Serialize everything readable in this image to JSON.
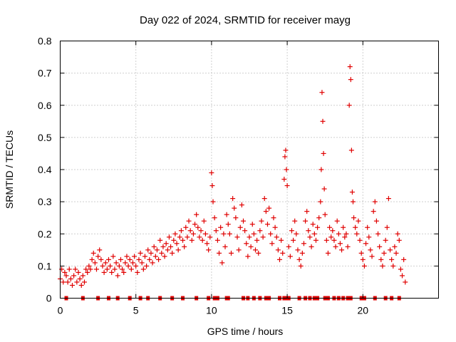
{
  "chart_data": {
    "type": "scatter",
    "title": "Day 022 of 2024, SRMTID for receiver mayg",
    "xlabel": "GPS time / hours",
    "ylabel": "SRMTID / TECUs",
    "xlim": [
      0,
      25
    ],
    "ylim": [
      0,
      0.8
    ],
    "x_ticks": [
      0,
      5,
      10,
      15,
      20
    ],
    "y_ticks": [
      0,
      0.1,
      0.2,
      0.3,
      0.4,
      0.5,
      0.6,
      0.7,
      0.8
    ],
    "x_tick_labels": [
      "0",
      "5",
      "10",
      "15",
      "20"
    ],
    "y_tick_labels": [
      "0",
      "0.1",
      "0.2",
      "0.3",
      "0.4",
      "0.5",
      "0.6",
      "0.7",
      "0.8"
    ],
    "grid": true,
    "marker": "+",
    "series_color": "#e00000",
    "series": [
      {
        "name": "SRMTID",
        "x": [
          0.0,
          0.1,
          0.2,
          0.3,
          0.4,
          0.5,
          0.6,
          0.7,
          0.8,
          0.9,
          1.0,
          1.1,
          1.2,
          1.3,
          1.4,
          1.5,
          1.6,
          1.7,
          1.8,
          1.9,
          2.0,
          2.1,
          2.2,
          2.3,
          2.4,
          2.5,
          2.6,
          2.7,
          2.8,
          2.9,
          3.0,
          3.1,
          3.2,
          3.3,
          3.4,
          3.5,
          3.6,
          3.7,
          3.8,
          3.9,
          4.0,
          4.1,
          4.2,
          4.3,
          4.4,
          4.5,
          4.6,
          4.7,
          4.8,
          4.9,
          5.0,
          5.1,
          5.2,
          5.3,
          5.4,
          5.5,
          5.6,
          5.7,
          5.8,
          5.9,
          6.0,
          6.1,
          6.2,
          6.3,
          6.4,
          6.5,
          6.6,
          6.7,
          6.8,
          6.9,
          7.0,
          7.1,
          7.2,
          7.3,
          7.4,
          7.5,
          7.6,
          7.7,
          7.8,
          7.9,
          8.0,
          8.1,
          8.2,
          8.3,
          8.4,
          8.5,
          8.6,
          8.7,
          8.8,
          8.9,
          9.0,
          9.1,
          9.2,
          9.3,
          9.4,
          9.5,
          9.6,
          9.7,
          9.8,
          9.9,
          10.0,
          10.05,
          10.1,
          10.2,
          10.3,
          10.4,
          10.5,
          10.6,
          10.7,
          10.8,
          10.9,
          11.0,
          11.1,
          11.2,
          11.3,
          11.4,
          11.5,
          11.6,
          11.7,
          11.8,
          11.9,
          12.0,
          12.1,
          12.2,
          12.3,
          12.4,
          12.5,
          12.6,
          12.7,
          12.8,
          12.9,
          13.0,
          13.1,
          13.2,
          13.3,
          13.4,
          13.5,
          13.6,
          13.7,
          13.8,
          13.9,
          14.0,
          14.1,
          14.2,
          14.3,
          14.4,
          14.5,
          14.6,
          14.7,
          14.8,
          14.85,
          14.9,
          14.95,
          15.0,
          15.1,
          15.2,
          15.3,
          15.4,
          15.5,
          15.6,
          15.7,
          15.8,
          15.9,
          16.0,
          16.1,
          16.2,
          16.3,
          16.4,
          16.5,
          16.6,
          16.7,
          16.8,
          16.9,
          17.0,
          17.1,
          17.2,
          17.25,
          17.3,
          17.35,
          17.4,
          17.45,
          17.5,
          17.6,
          17.7,
          17.8,
          17.9,
          18.0,
          18.1,
          18.2,
          18.3,
          18.4,
          18.5,
          18.6,
          18.7,
          18.8,
          18.9,
          19.0,
          19.1,
          19.15,
          19.2,
          19.25,
          19.3,
          19.35,
          19.4,
          19.5,
          19.6,
          19.7,
          19.8,
          19.9,
          20.0,
          20.1,
          20.2,
          20.3,
          20.4,
          20.5,
          20.6,
          20.7,
          20.8,
          20.9,
          21.0,
          21.1,
          21.2,
          21.3,
          21.4,
          21.5,
          21.6,
          21.7,
          21.8,
          21.9,
          22.0,
          22.1,
          22.2,
          22.3,
          22.4,
          22.5,
          22.6,
          22.7,
          22.8
        ],
        "y": [
          0.06,
          0.09,
          0.05,
          0.08,
          0.07,
          0.05,
          0.09,
          0.06,
          0.04,
          0.07,
          0.09,
          0.05,
          0.08,
          0.06,
          0.04,
          0.07,
          0.05,
          0.09,
          0.08,
          0.1,
          0.09,
          0.12,
          0.14,
          0.11,
          0.09,
          0.13,
          0.15,
          0.12,
          0.1,
          0.08,
          0.11,
          0.09,
          0.12,
          0.1,
          0.08,
          0.13,
          0.09,
          0.11,
          0.07,
          0.1,
          0.12,
          0.09,
          0.08,
          0.11,
          0.13,
          0.1,
          0.12,
          0.09,
          0.11,
          0.13,
          0.1,
          0.08,
          0.12,
          0.14,
          0.11,
          0.09,
          0.13,
          0.1,
          0.15,
          0.12,
          0.14,
          0.11,
          0.16,
          0.13,
          0.15,
          0.12,
          0.18,
          0.14,
          0.16,
          0.13,
          0.17,
          0.15,
          0.19,
          0.16,
          0.14,
          0.18,
          0.2,
          0.17,
          0.15,
          0.19,
          0.21,
          0.18,
          0.16,
          0.22,
          0.19,
          0.24,
          0.21,
          0.18,
          0.2,
          0.23,
          0.26,
          0.22,
          0.19,
          0.21,
          0.18,
          0.24,
          0.2,
          0.17,
          0.15,
          0.19,
          0.39,
          0.35,
          0.3,
          0.25,
          0.21,
          0.18,
          0.14,
          0.22,
          0.11,
          0.2,
          0.16,
          0.26,
          0.23,
          0.2,
          0.14,
          0.31,
          0.28,
          0.25,
          0.19,
          0.15,
          0.22,
          0.29,
          0.24,
          0.21,
          0.17,
          0.13,
          0.19,
          0.16,
          0.23,
          0.2,
          0.15,
          0.18,
          0.14,
          0.21,
          0.24,
          0.19,
          0.31,
          0.27,
          0.23,
          0.28,
          0.2,
          0.17,
          0.25,
          0.22,
          0.19,
          0.15,
          0.12,
          0.18,
          0.14,
          0.37,
          0.44,
          0.46,
          0.4,
          0.35,
          0.16,
          0.13,
          0.21,
          0.18,
          0.24,
          0.2,
          0.15,
          0.12,
          0.1,
          0.14,
          0.17,
          0.24,
          0.27,
          0.21,
          0.19,
          0.16,
          0.23,
          0.2,
          0.18,
          0.22,
          0.25,
          0.3,
          0.4,
          0.64,
          0.55,
          0.45,
          0.34,
          0.26,
          0.18,
          0.14,
          0.22,
          0.19,
          0.21,
          0.18,
          0.16,
          0.24,
          0.2,
          0.17,
          0.15,
          0.22,
          0.19,
          0.2,
          0.16,
          0.6,
          0.72,
          0.68,
          0.46,
          0.33,
          0.3,
          0.25,
          0.22,
          0.2,
          0.24,
          0.18,
          0.14,
          0.12,
          0.1,
          0.17,
          0.22,
          0.19,
          0.15,
          0.13,
          0.27,
          0.3,
          0.24,
          0.2,
          0.16,
          0.12,
          0.1,
          0.14,
          0.18,
          0.22,
          0.31,
          0.15,
          0.12,
          0.1,
          0.16,
          0.14,
          0.2,
          0.18,
          0.09,
          0.07,
          0.12,
          0.05
        ]
      }
    ],
    "flag_series": {
      "name": "flags at zero",
      "y": 0,
      "x": [
        0.4,
        1.5,
        2.5,
        3.2,
        3.8,
        4.6,
        5.3,
        5.8,
        6.6,
        7.4,
        8.1,
        9.0,
        9.8,
        10.2,
        10.4,
        11.0,
        11.1,
        12.1,
        12.4,
        12.8,
        13.2,
        13.6,
        13.8,
        14.5,
        14.8,
        14.9,
        15.1,
        15.8,
        16.2,
        16.5,
        16.8,
        17.0,
        17.5,
        17.7,
        18.1,
        18.4,
        18.7,
        19.0,
        19.2,
        19.9,
        20.1,
        20.8,
        21.5,
        21.9,
        22.4
      ]
    }
  }
}
